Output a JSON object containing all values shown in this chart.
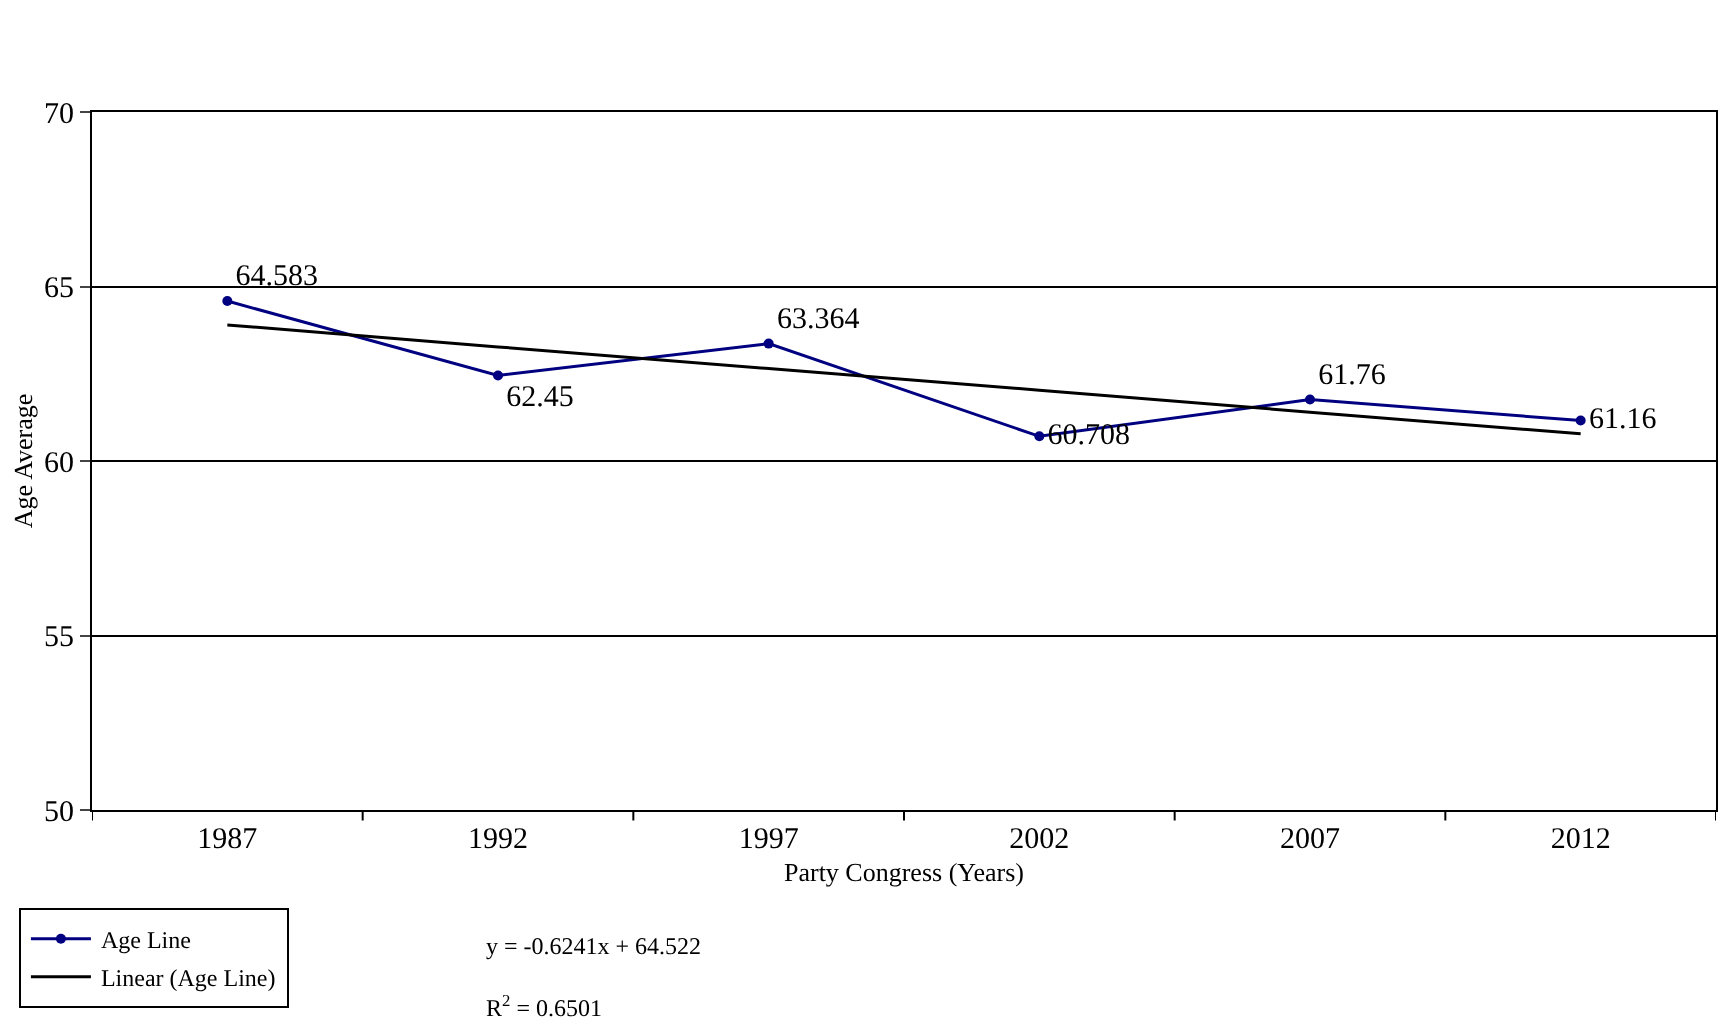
{
  "chart_data": {
    "type": "line",
    "xlabel": "Party Congress (Years)",
    "ylabel": "Age Average",
    "categories": [
      "1987",
      "1992",
      "1997",
      "2002",
      "2007",
      "2012"
    ],
    "series": [
      {
        "name": "Age Line",
        "color": "#000080",
        "marker": "circle",
        "values": [
          64.583,
          62.45,
          63.364,
          60.708,
          61.76,
          61.16
        ],
        "value_labels": [
          "64.583",
          "62.45",
          "63.364",
          "60.708",
          "61.76",
          "61.16"
        ]
      },
      {
        "name": "Linear (Age Line)",
        "color": "#000000",
        "marker": "none",
        "values": [
          63.9,
          63.27,
          62.65,
          62.03,
          61.4,
          60.78
        ]
      }
    ],
    "ylim": [
      50,
      70
    ],
    "yticks": [
      50,
      55,
      60,
      65,
      70
    ],
    "grid": "y",
    "legend": "bottom left",
    "annotations": [
      "y = -0.6241x + 64.522",
      "R$^{2}$ = 0.6501"
    ]
  }
}
